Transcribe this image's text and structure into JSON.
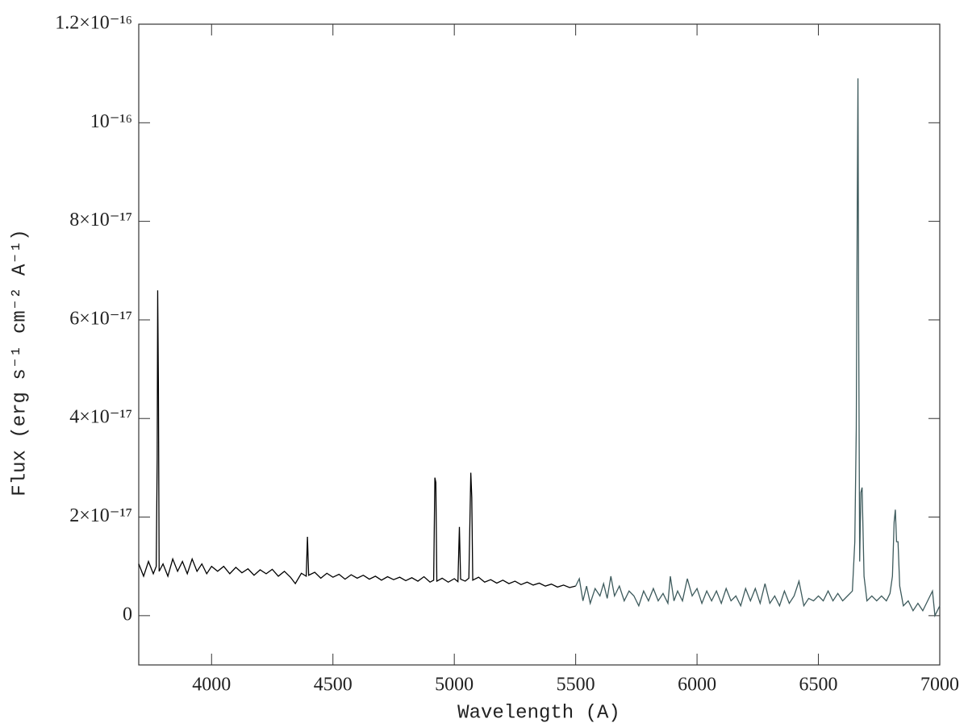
{
  "chart_data": {
    "type": "line",
    "xlabel": "Wavelength (A)",
    "ylabel": "Flux (erg s⁻¹ cm⁻² A⁻¹)",
    "xlim": [
      3700,
      7000
    ],
    "ylim": [
      -1e-17,
      1.2e-16
    ],
    "xticks": [
      4000,
      4500,
      5000,
      5500,
      6000,
      6500,
      7000
    ],
    "yticks": [
      0,
      {
        "value": 2e-17,
        "label": "2×10⁻¹⁷"
      },
      {
        "value": 4e-17,
        "label": "4×10⁻¹⁷"
      },
      {
        "value": 6e-17,
        "label": "6×10⁻¹⁷"
      },
      {
        "value": 8e-17,
        "label": "8×10⁻¹⁷"
      },
      {
        "value": 1e-16,
        "label": "10⁻¹⁶"
      },
      {
        "value": 1.2e-16,
        "label": "1.2×10⁻¹⁶"
      }
    ],
    "series": [
      {
        "color": "#000000",
        "x": [
          3700,
          3720,
          3740,
          3760,
          3772,
          3776,
          3778,
          3781,
          3784,
          3800,
          3820,
          3840,
          3860,
          3880,
          3900,
          3920,
          3940,
          3960,
          3980,
          4000,
          4025,
          4050,
          4075,
          4100,
          4125,
          4150,
          4175,
          4200,
          4225,
          4250,
          4275,
          4300,
          4325,
          4345,
          4370,
          4390,
          4395,
          4400,
          4425,
          4450,
          4475,
          4500,
          4525,
          4550,
          4575,
          4600,
          4625,
          4650,
          4675,
          4700,
          4725,
          4750,
          4775,
          4800,
          4825,
          4850,
          4875,
          4900,
          4915,
          4920,
          4924,
          4928,
          4950,
          4975,
          5000,
          5015,
          5021,
          5026,
          5045,
          5060,
          5068,
          5072,
          5076,
          5100,
          5125,
          5150,
          5175,
          5200,
          5225,
          5250,
          5275,
          5300,
          5325,
          5350,
          5375,
          5400,
          5425,
          5450,
          5475,
          5500
        ],
        "values": [
          1.05e-17,
          8e-18,
          1.1e-17,
          8.5e-18,
          1e-17,
          3.2e-17,
          6.6e-17,
          4.7e-17,
          9e-18,
          1.05e-17,
          8e-18,
          1.15e-17,
          9e-18,
          1.1e-17,
          8.5e-18,
          1.15e-17,
          9e-18,
          1.05e-17,
          8.5e-18,
          1e-17,
          9e-18,
          1e-17,
          8.5e-18,
          9.8e-18,
          8.7e-18,
          9.5e-18,
          8.2e-18,
          9.3e-18,
          8.5e-18,
          9.4e-18,
          8e-18,
          9e-18,
          7.8e-18,
          6.5e-18,
          8.6e-18,
          8e-18,
          1.6e-17,
          8.2e-18,
          8.8e-18,
          7.6e-18,
          8.6e-18,
          7.8e-18,
          8.4e-18,
          7.4e-18,
          8.3e-18,
          7.6e-18,
          8.2e-18,
          7.4e-18,
          8e-18,
          7.2e-18,
          7.9e-18,
          7.3e-18,
          7.8e-18,
          7.1e-18,
          7.7e-18,
          7e-18,
          7.9e-18,
          6.8e-18,
          7.2e-18,
          2.8e-17,
          2.7e-17,
          7e-18,
          7.6e-18,
          6.8e-18,
          7.5e-18,
          6.9e-18,
          1.8e-17,
          7.4e-18,
          7e-18,
          7.6e-18,
          2.9e-17,
          2.4e-17,
          7.2e-18,
          7.8e-18,
          6.8e-18,
          7.3e-18,
          6.6e-18,
          7.2e-18,
          6.5e-18,
          7e-18,
          6.3e-18,
          6.8e-18,
          6.2e-18,
          6.6e-18,
          6e-18,
          6.4e-18,
          5.8e-18,
          6.2e-18,
          5.7e-18,
          6e-18
        ]
      },
      {
        "color": "#3d5a5c",
        "x": [
          5500,
          5515,
          5530,
          5545,
          5560,
          5580,
          5600,
          5615,
          5630,
          5645,
          5660,
          5680,
          5700,
          5720,
          5740,
          5760,
          5780,
          5800,
          5820,
          5840,
          5860,
          5880,
          5890,
          5905,
          5920,
          5940,
          5960,
          5980,
          6000,
          6020,
          6040,
          6060,
          6080,
          6100,
          6120,
          6140,
          6160,
          6180,
          6200,
          6220,
          6240,
          6260,
          6280,
          6300,
          6320,
          6340,
          6360,
          6380,
          6400,
          6420,
          6440,
          6460,
          6480,
          6500,
          6520,
          6540,
          6560,
          6580,
          6600,
          6620,
          6640,
          6650,
          6656,
          6660,
          6663,
          6666,
          6670,
          6675,
          6680,
          6688,
          6700,
          6720,
          6740,
          6760,
          6780,
          6795,
          6805,
          6812,
          6817,
          6822,
          6828,
          6835,
          6850,
          6870,
          6890,
          6910,
          6930,
          6950,
          6970,
          6980,
          7000
        ],
        "values": [
          6e-18,
          7.5e-18,
          3e-18,
          6e-18,
          2.5e-18,
          5.5e-18,
          4e-18,
          6.5e-18,
          3.5e-18,
          8e-18,
          4e-18,
          6e-18,
          3e-18,
          5e-18,
          4e-18,
          2e-18,
          5e-18,
          3e-18,
          5.5e-18,
          3e-18,
          4.5e-18,
          2.5e-18,
          8e-18,
          3e-18,
          5e-18,
          3e-18,
          7.5e-18,
          4e-18,
          5.5e-18,
          2.5e-18,
          5e-18,
          3e-18,
          5e-18,
          2.5e-18,
          5.5e-18,
          3e-18,
          4e-18,
          2e-18,
          5.5e-18,
          3e-18,
          5.5e-18,
          2.5e-18,
          6.5e-18,
          2.5e-18,
          4e-18,
          2e-18,
          5e-18,
          2.5e-18,
          4e-18,
          7e-18,
          2e-18,
          3.5e-18,
          3e-18,
          4e-18,
          3e-18,
          5e-18,
          3e-18,
          4.5e-18,
          3e-18,
          4e-18,
          5e-18,
          1.5e-17,
          3.8e-17,
          8.2e-17,
          1.09e-16,
          5.8e-17,
          1.1e-17,
          2.5e-17,
          2.6e-17,
          8e-18,
          3e-18,
          4e-18,
          3e-18,
          4e-18,
          3e-18,
          4.5e-18,
          8e-18,
          1.9e-17,
          2.15e-17,
          1.5e-17,
          1.5e-17,
          6e-18,
          2e-18,
          3e-18,
          1e-18,
          2.5e-18,
          1e-18,
          3e-18,
          5e-18,
          0,
          2e-18
        ]
      }
    ]
  }
}
